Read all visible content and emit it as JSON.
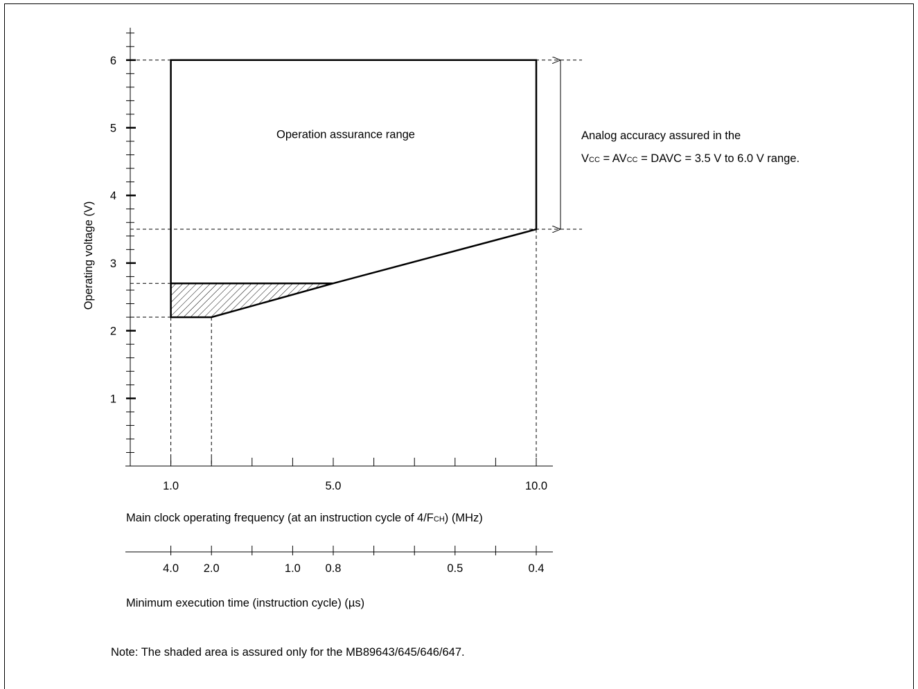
{
  "chart_data": {
    "type": "area",
    "title": "",
    "ylabel": "Operating voltage (V)",
    "xlabel": "Main clock operating frequency (at an instruction cycle of 4/FCH) (MHz)",
    "xlabel_parts": {
      "pre": "Main clock operating frequency (at an instruction cycle of 4/F",
      "sub": "CH",
      "post": ") (MHz)"
    },
    "x2label": "Minimum execution time (instruction cycle) (µs)",
    "xlim": [
      0,
      10.4
    ],
    "ylim": [
      0,
      6.7
    ],
    "y_ticks": [
      "1",
      "2",
      "3",
      "4",
      "5",
      "6"
    ],
    "y_tick_values": [
      1,
      2,
      3,
      4,
      5,
      6
    ],
    "y_minor_step": 0.2,
    "x_ticks": [
      "1.0",
      "5.0",
      "10.0"
    ],
    "x_tick_values": [
      1,
      5,
      10
    ],
    "x_minor_ticks": [
      2,
      3,
      4,
      6,
      7,
      8,
      9
    ],
    "x2_ticks": [
      "4.0",
      "2.0",
      "1.0",
      "0.8",
      "0.5",
      "0.4"
    ],
    "x2_tick_values": [
      1,
      2,
      4,
      5,
      8,
      10
    ],
    "x2_minor_ticks": [
      3,
      6,
      7,
      9
    ],
    "region_label": "Operation assurance range",
    "region_label_at": [
      5,
      5.8
    ],
    "operating_region": [
      [
        1,
        6
      ],
      [
        10,
        6
      ],
      [
        10,
        3.5
      ],
      [
        5,
        2.7
      ],
      [
        2,
        2.2
      ],
      [
        1,
        2.2
      ]
    ],
    "shaded_region": [
      [
        1,
        2.7
      ],
      [
        5,
        2.7
      ],
      [
        2,
        2.2
      ],
      [
        1,
        2.2
      ]
    ],
    "guides": {
      "horizontal": [
        6,
        3.5,
        2.7,
        2.2
      ],
      "vertical": [
        1,
        2,
        10
      ]
    },
    "annotation": {
      "range": [
        3.5,
        6.0
      ],
      "line1": "Analog accuracy assured in the",
      "line2_parts": [
        "V",
        "CC",
        " = AV",
        "CC",
        " = DAVC = 3.5 V to 6.0 V range."
      ]
    }
  },
  "note": "Note:  The shaded area is assured only for the MB89643/645/646/647."
}
